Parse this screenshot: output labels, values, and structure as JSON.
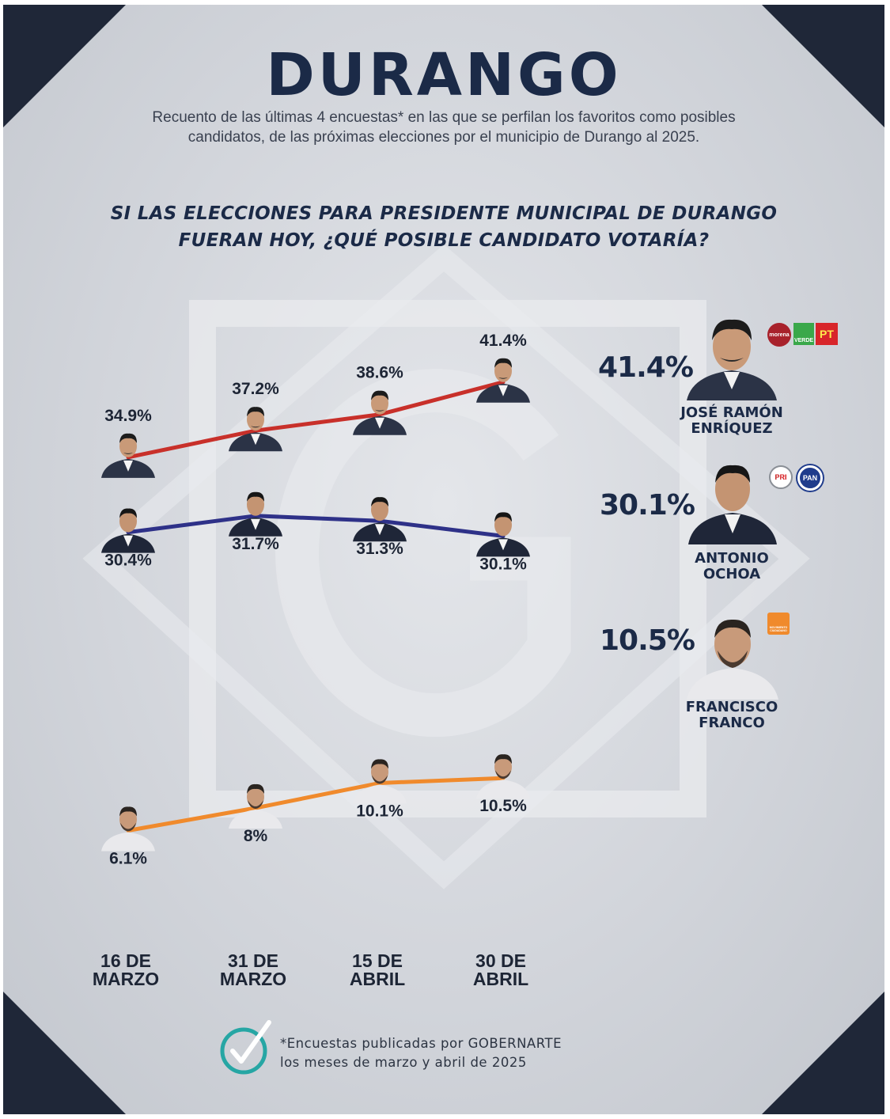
{
  "header": {
    "title": "DURANGO",
    "subtitle_line1": "Recuento de las últimas 4 encuestas* en las que se perfilan los favoritos como posibles",
    "subtitle_line2": "candidatos, de las próximas elecciones por el municipio de Durango al 2025.",
    "question_line1": "SI LAS ELECCIONES PARA PRESIDENTE MUNICIPAL DE DURANGO",
    "question_line2": "FUERAN HOY, ¿QUÉ POSIBLE CANDIDATO VOTARÍA?"
  },
  "chart_data": {
    "type": "line",
    "title": "SI LAS ELECCIONES PARA PRESIDENTE MUNICIPAL DE DURANGO FUERAN HOY, ¿QUÉ POSIBLE CANDIDATO VOTARÍA?",
    "categories": [
      {
        "line1": "16 DE",
        "line2": "MARZO"
      },
      {
        "line1": "31 DE",
        "line2": "MARZO"
      },
      {
        "line1": "15 DE",
        "line2": "ABRIL"
      },
      {
        "line1": "30 DE",
        "line2": "ABRIL"
      }
    ],
    "series": [
      {
        "name": "José Ramón Enríquez",
        "color": "#c8302a",
        "values": [
          34.9,
          37.2,
          38.6,
          41.4
        ],
        "labels": [
          "34.9%",
          "37.2%",
          "38.6%",
          "41.4%"
        ],
        "label_position": "above"
      },
      {
        "name": "Antonio Ochoa",
        "color": "#2e3188",
        "values": [
          30.4,
          31.7,
          31.3,
          30.1
        ],
        "labels": [
          "30.4%",
          "31.7%",
          "31.3%",
          "30.1%"
        ],
        "label_position": "below"
      },
      {
        "name": "Francisco Franco",
        "color": "#f08a2c",
        "values": [
          6.1,
          8,
          10.1,
          10.5
        ],
        "labels": [
          "6.1%",
          "8%",
          "10.1%",
          "10.5%"
        ],
        "label_position": "below"
      }
    ],
    "xlabel": "",
    "ylabel": "",
    "grid": false,
    "legend": "right"
  },
  "summary": [
    {
      "pct": "41.4%",
      "name_line1": "JOSÉ RAMÓN",
      "name_line2": "ENRÍQUEZ",
      "parties": [
        "morena",
        "VERDE",
        "PT"
      ]
    },
    {
      "pct": "30.1%",
      "name_line1": "ANTONIO",
      "name_line2": "OCHOA",
      "parties": [
        "PRI",
        "PAN"
      ]
    },
    {
      "pct": "10.5%",
      "name_line1": "FRANCISCO",
      "name_line2": "FRANCO",
      "parties": [
        "MOVIMIENTO CIUDADANO"
      ]
    }
  ],
  "footer": {
    "note_line1": "*Encuestas publicadas por GOBERNARTE",
    "note_line2": "los meses de marzo y abril de 2025"
  },
  "colors": {
    "navy": "#1b2a47",
    "red": "#c8302a",
    "blue": "#2e3188",
    "orange": "#f08a2c",
    "teal": "#26a6a4"
  }
}
